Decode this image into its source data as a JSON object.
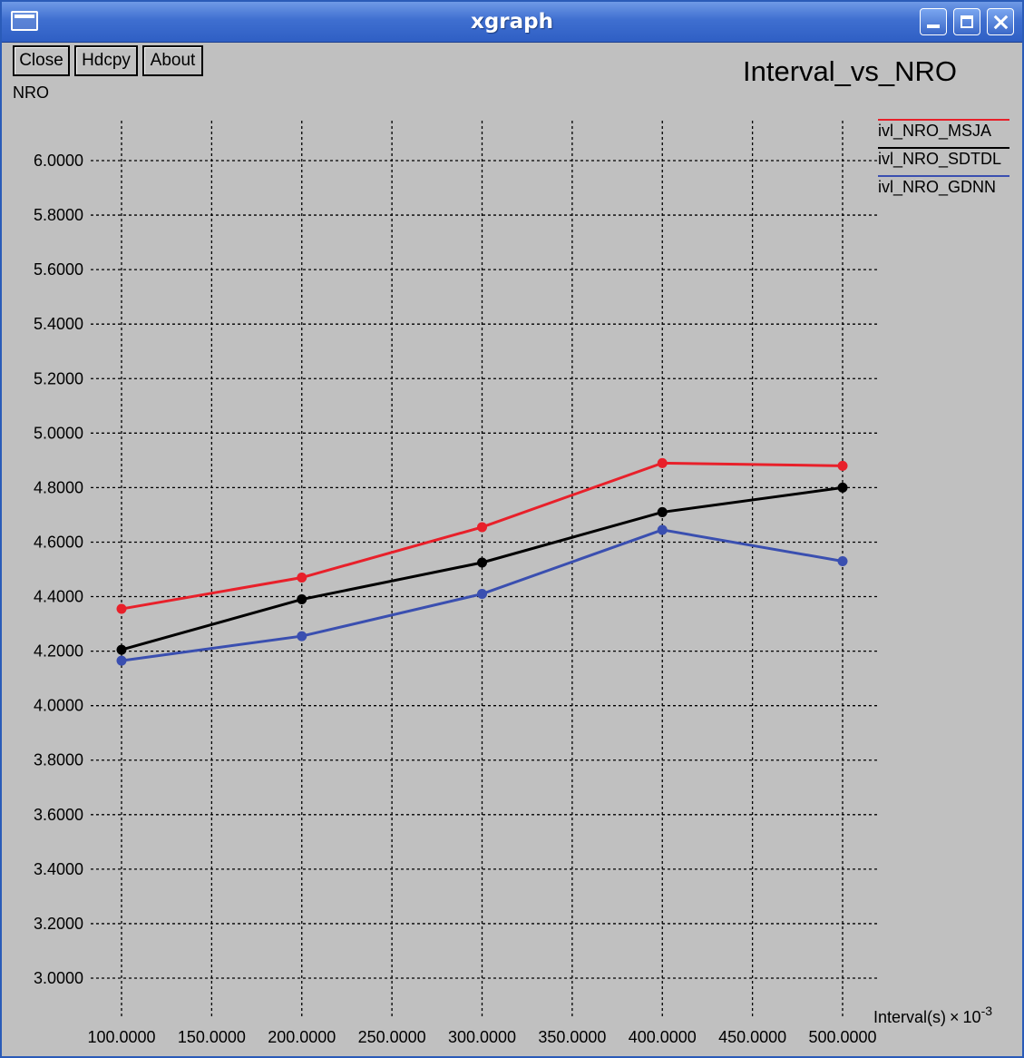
{
  "window": {
    "title": "xgraph"
  },
  "toolbar": {
    "close_label": "Close",
    "hdcpy_label": "Hdcpy",
    "about_label": "About"
  },
  "chart_data": {
    "type": "line",
    "title": "Interval_vs_NRO",
    "ylabel": "NRO",
    "xlabel_base": "Interval(s)",
    "xlabel_mult": "×",
    "xlabel_exp_base": "10",
    "xlabel_exp": "-3",
    "grid": true,
    "legend_position": "top-right",
    "xlim": [
      100,
      500
    ],
    "ylim": [
      3.0,
      6.0
    ],
    "x_ticks": [
      100,
      150,
      200,
      250,
      300,
      350,
      400,
      450,
      500
    ],
    "x_tick_labels": [
      "100.0000",
      "150.0000",
      "200.0000",
      "250.0000",
      "300.0000",
      "350.0000",
      "400.0000",
      "450.0000",
      "500.0000"
    ],
    "y_ticks": [
      3.0,
      3.2,
      3.4,
      3.6,
      3.8,
      4.0,
      4.2,
      4.4,
      4.6,
      4.8,
      5.0,
      5.2,
      5.4,
      5.6,
      5.8,
      6.0
    ],
    "y_tick_labels": [
      "3.0000",
      "3.2000",
      "3.4000",
      "3.6000",
      "3.8000",
      "4.0000",
      "4.2000",
      "4.4000",
      "4.6000",
      "4.8000",
      "5.0000",
      "5.2000",
      "5.4000",
      "5.6000",
      "5.8000",
      "6.0000"
    ],
    "x": [
      100,
      200,
      300,
      400,
      500
    ],
    "series": [
      {
        "name": "ivl_NRO_MSJA",
        "color": "#e8202a",
        "values": [
          4.355,
          4.47,
          4.655,
          4.89,
          4.88
        ]
      },
      {
        "name": "ivl_NRO_SDTDL",
        "color": "#000000",
        "values": [
          4.205,
          4.39,
          4.525,
          4.71,
          4.8
        ]
      },
      {
        "name": "ivl_NRO_GDNN",
        "color": "#3a4fb0",
        "values": [
          4.165,
          4.255,
          4.41,
          4.645,
          4.53
        ]
      }
    ]
  }
}
